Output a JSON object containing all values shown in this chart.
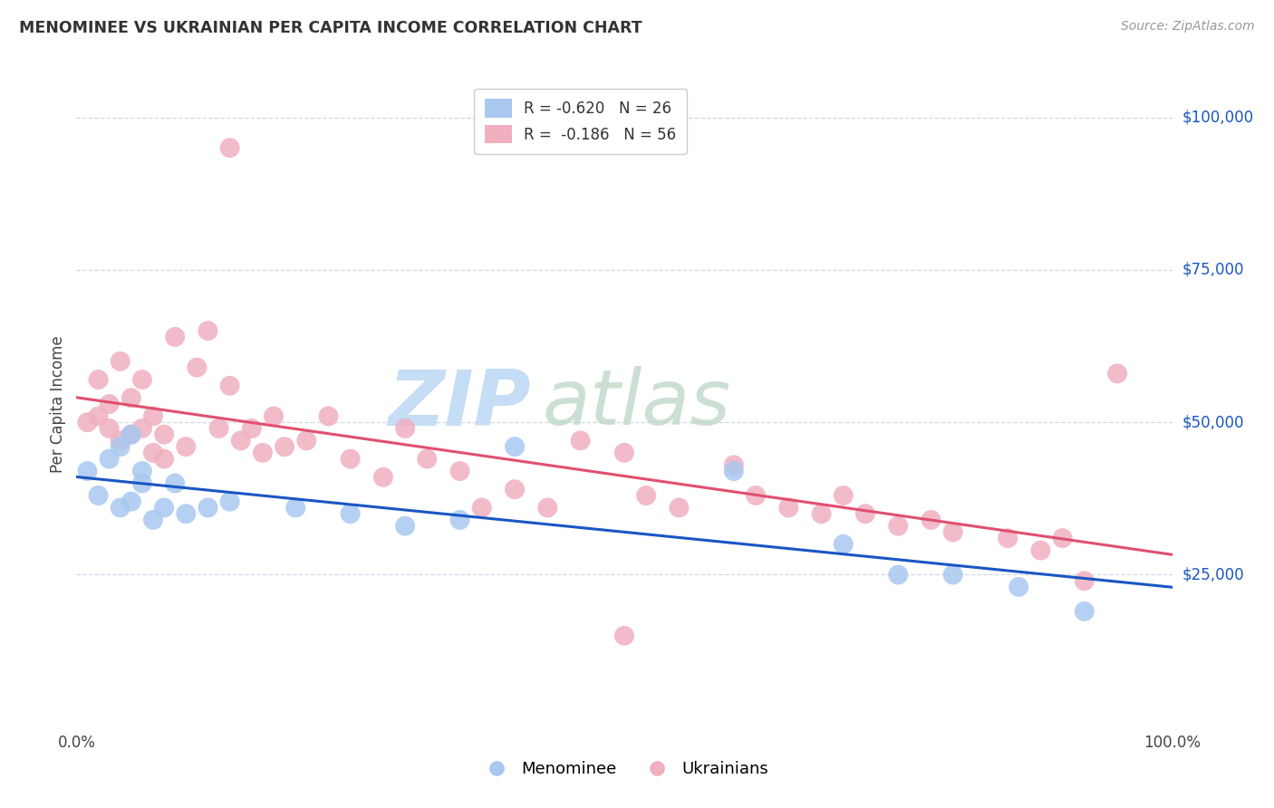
{
  "title": "MENOMINEE VS UKRAINIAN PER CAPITA INCOME CORRELATION CHART",
  "source": "Source: ZipAtlas.com",
  "ylabel": "Per Capita Income",
  "yticks": [
    0,
    25000,
    50000,
    75000,
    100000
  ],
  "ytick_labels": [
    "",
    "$25,000",
    "$50,000",
    "$75,000",
    "$100,000"
  ],
  "legend_blue_r": "R = -0.620",
  "legend_blue_n": "N = 26",
  "legend_pink_r": "R =  -0.186",
  "legend_pink_n": "N = 56",
  "blue_color": "#a8c8f0",
  "pink_color": "#f0b0c0",
  "blue_line_color": "#1a56c4",
  "pink_line_color": "#e0506e",
  "right_label_color": "#1a56c4",
  "blue_x": [
    0.01,
    0.02,
    0.03,
    0.04,
    0.04,
    0.05,
    0.05,
    0.06,
    0.06,
    0.07,
    0.08,
    0.09,
    0.1,
    0.12,
    0.14,
    0.2,
    0.25,
    0.3,
    0.35,
    0.4,
    0.6,
    0.7,
    0.75,
    0.8,
    0.86,
    0.92
  ],
  "blue_y": [
    42000,
    38000,
    44000,
    46000,
    36000,
    48000,
    37000,
    42000,
    40000,
    34000,
    36000,
    40000,
    35000,
    36000,
    37000,
    36000,
    35000,
    33000,
    34000,
    46000,
    42000,
    30000,
    25000,
    25000,
    23000,
    19000
  ],
  "pink_x": [
    0.01,
    0.02,
    0.02,
    0.03,
    0.03,
    0.04,
    0.04,
    0.05,
    0.05,
    0.06,
    0.06,
    0.07,
    0.07,
    0.08,
    0.08,
    0.09,
    0.1,
    0.11,
    0.12,
    0.13,
    0.14,
    0.15,
    0.16,
    0.17,
    0.18,
    0.19,
    0.21,
    0.23,
    0.25,
    0.28,
    0.3,
    0.32,
    0.35,
    0.37,
    0.4,
    0.43,
    0.46,
    0.5,
    0.52,
    0.55,
    0.6,
    0.62,
    0.65,
    0.68,
    0.7,
    0.72,
    0.75,
    0.78,
    0.8,
    0.85,
    0.88,
    0.9,
    0.92,
    0.14,
    0.5,
    0.95
  ],
  "pink_y": [
    50000,
    57000,
    51000,
    53000,
    49000,
    60000,
    47000,
    54000,
    48000,
    57000,
    49000,
    51000,
    45000,
    48000,
    44000,
    64000,
    46000,
    59000,
    65000,
    49000,
    56000,
    47000,
    49000,
    45000,
    51000,
    46000,
    47000,
    51000,
    44000,
    41000,
    49000,
    44000,
    42000,
    36000,
    39000,
    36000,
    47000,
    45000,
    38000,
    36000,
    43000,
    38000,
    36000,
    35000,
    38000,
    35000,
    33000,
    34000,
    32000,
    31000,
    29000,
    31000,
    24000,
    95000,
    15000,
    58000
  ],
  "scatter_size": 250,
  "grid_color": "#d0d8e8",
  "watermark_color": "#c8dff5"
}
